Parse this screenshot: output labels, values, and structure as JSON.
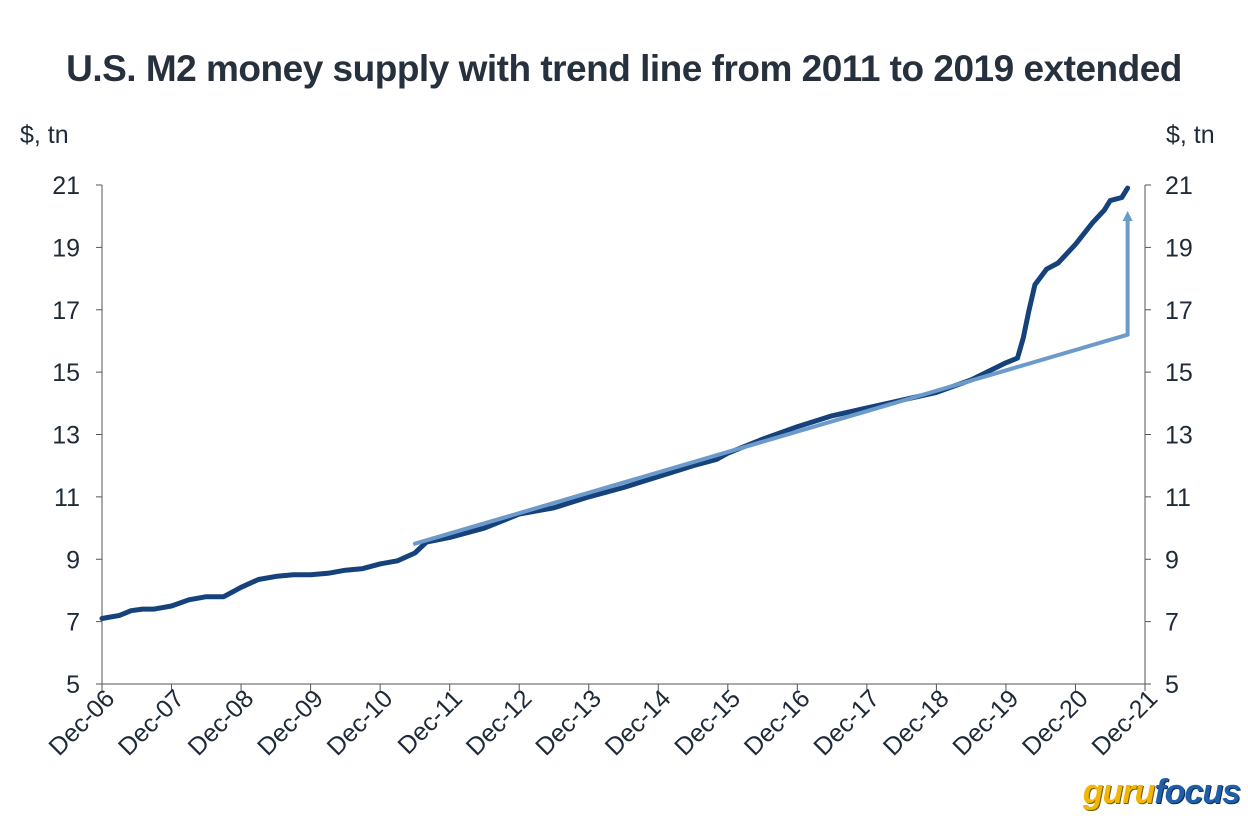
{
  "chart_data": {
    "type": "line",
    "title": "U.S. M2 money supply with trend line from 2011 to 2019 extended",
    "ylabel_left": "$, tn",
    "ylabel_right": "$, tn",
    "ylim": [
      5,
      21
    ],
    "yticks": [
      5,
      7,
      9,
      11,
      13,
      15,
      17,
      19,
      21
    ],
    "xlim": [
      "2006-12",
      "2021-12"
    ],
    "xticks": [
      "Dec-06",
      "Dec-07",
      "Dec-08",
      "Dec-09",
      "Dec-10",
      "Dec-11",
      "Dec-12",
      "Dec-13",
      "Dec-14",
      "Dec-15",
      "Dec-16",
      "Dec-17",
      "Dec-18",
      "Dec-19",
      "Dec-20",
      "Dec-21"
    ],
    "grid": false,
    "series": [
      {
        "color": "#15427a",
        "points": [
          [
            "2006-12",
            7.1
          ],
          [
            "2007-03",
            7.2
          ],
          [
            "2007-05",
            7.35
          ],
          [
            "2007-07",
            7.4
          ],
          [
            "2007-09",
            7.4
          ],
          [
            "2007-12",
            7.5
          ],
          [
            "2008-03",
            7.7
          ],
          [
            "2008-06",
            7.8
          ],
          [
            "2008-09",
            7.8
          ],
          [
            "2008-12",
            8.1
          ],
          [
            "2009-03",
            8.35
          ],
          [
            "2009-06",
            8.45
          ],
          [
            "2009-09",
            8.5
          ],
          [
            "2009-12",
            8.5
          ],
          [
            "2010-03",
            8.55
          ],
          [
            "2010-06",
            8.65
          ],
          [
            "2010-09",
            8.7
          ],
          [
            "2010-12",
            8.85
          ],
          [
            "2011-03",
            8.95
          ],
          [
            "2011-06",
            9.2
          ],
          [
            "2011-08",
            9.55
          ],
          [
            "2011-12",
            9.7
          ],
          [
            "2012-06",
            10.0
          ],
          [
            "2012-12",
            10.45
          ],
          [
            "2013-06",
            10.65
          ],
          [
            "2013-12",
            11.0
          ],
          [
            "2014-06",
            11.3
          ],
          [
            "2014-12",
            11.65
          ],
          [
            "2015-06",
            12.0
          ],
          [
            "2015-10",
            12.2
          ],
          [
            "2015-12",
            12.4
          ],
          [
            "2016-06",
            12.85
          ],
          [
            "2016-12",
            13.25
          ],
          [
            "2017-06",
            13.6
          ],
          [
            "2017-12",
            13.85
          ],
          [
            "2018-06",
            14.1
          ],
          [
            "2018-12",
            14.35
          ],
          [
            "2019-06",
            14.75
          ],
          [
            "2019-12",
            15.3
          ],
          [
            "2020-02",
            15.45
          ],
          [
            "2020-03",
            16.1
          ],
          [
            "2020-04",
            17.0
          ],
          [
            "2020-05",
            17.8
          ],
          [
            "2020-07",
            18.3
          ],
          [
            "2020-09",
            18.5
          ],
          [
            "2020-12",
            19.1
          ],
          [
            "2021-03",
            19.8
          ],
          [
            "2021-05",
            20.2
          ],
          [
            "2021-06",
            20.5
          ],
          [
            "2021-08",
            20.6
          ],
          [
            "2021-09",
            20.9
          ]
        ]
      },
      {
        "color": "#6c9acb",
        "points": [
          [
            "2011-06",
            9.5
          ],
          [
            "2021-09",
            16.2
          ]
        ]
      }
    ],
    "annotations": [
      {
        "type": "arrow",
        "color": "#6c9acb",
        "x": "2021-09",
        "from": 16.2,
        "to": 20.2
      }
    ]
  },
  "watermark": {
    "part1": "guru",
    "part2": "focus"
  }
}
